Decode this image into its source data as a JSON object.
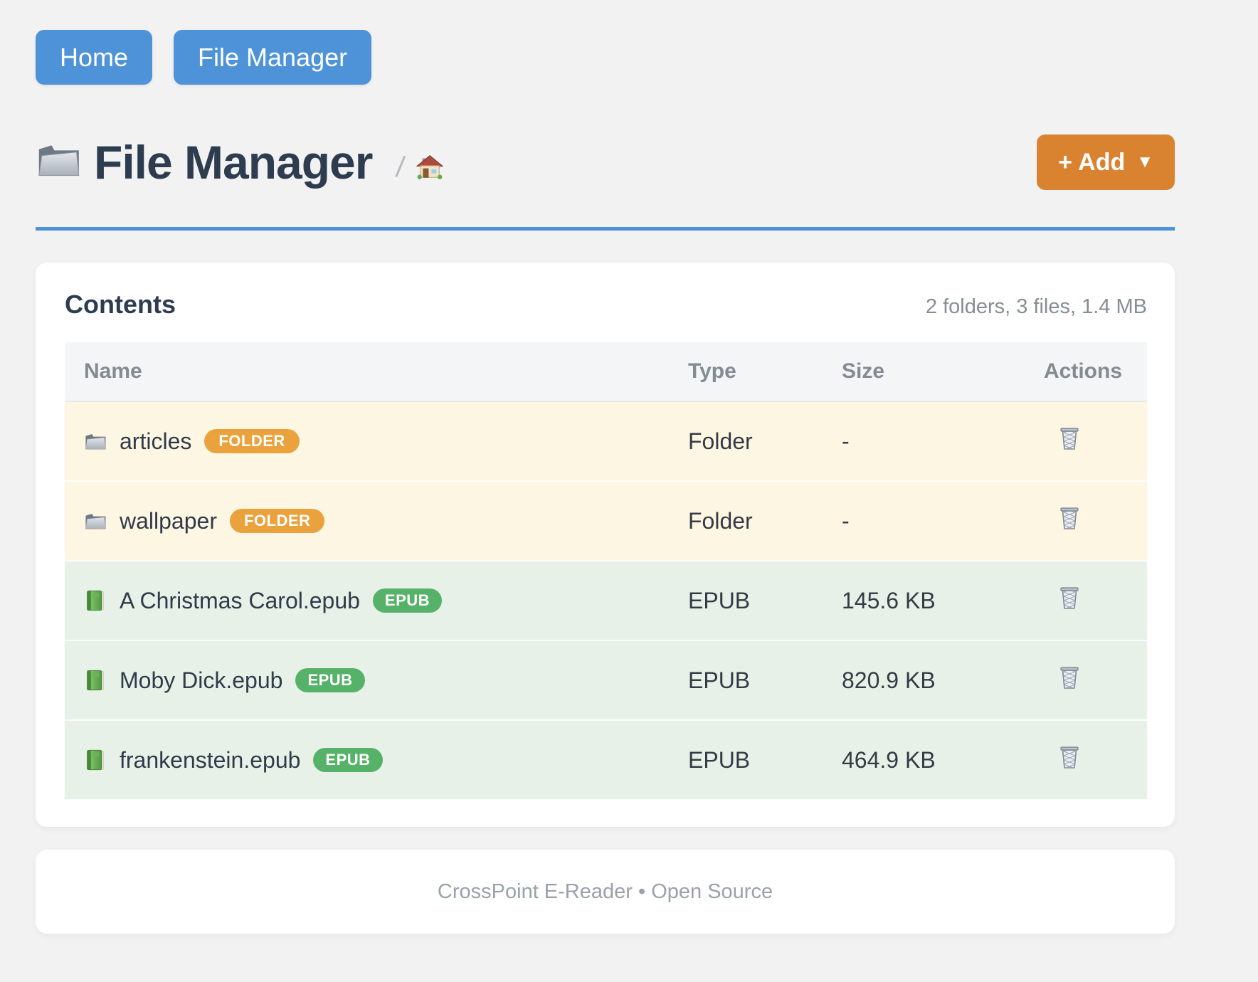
{
  "nav": {
    "home_label": "Home",
    "file_manager_label": "File Manager"
  },
  "header": {
    "title": "File Manager",
    "breadcrumb_separator": "/",
    "title_icon": "folder-icon",
    "breadcrumb_icon": "home-icon",
    "add_button_label": "+ Add",
    "add_button_caret": "▼"
  },
  "contents": {
    "heading": "Contents",
    "summary": "2 folders, 3 files, 1.4 MB"
  },
  "table": {
    "headers": {
      "name": "Name",
      "type": "Type",
      "size": "Size",
      "actions": "Actions"
    },
    "action_icon": "trash-icon",
    "rows": [
      {
        "name": "articles",
        "badge": "FOLDER",
        "type": "Folder",
        "size": "-",
        "kind": "folder",
        "icon": "folder-icon"
      },
      {
        "name": "wallpaper",
        "badge": "FOLDER",
        "type": "Folder",
        "size": "-",
        "kind": "folder",
        "icon": "folder-icon"
      },
      {
        "name": "A Christmas Carol.epub",
        "badge": "EPUB",
        "type": "EPUB",
        "size": "145.6 KB",
        "kind": "epub",
        "icon": "book-icon"
      },
      {
        "name": "Moby Dick.epub",
        "badge": "EPUB",
        "type": "EPUB",
        "size": "820.9 KB",
        "kind": "epub",
        "icon": "book-icon"
      },
      {
        "name": "frankenstein.epub",
        "badge": "EPUB",
        "type": "EPUB",
        "size": "464.9 KB",
        "kind": "epub",
        "icon": "book-icon"
      }
    ]
  },
  "footer": {
    "text": "CrossPoint E-Reader • Open Source"
  },
  "colors": {
    "accent_blue": "#4e93d8",
    "accent_orange": "#d9822f",
    "badge_orange": "#e9a23c",
    "badge_green": "#57b269",
    "row_folder_bg": "#fdf6e3",
    "row_epub_bg": "#e7f1e8",
    "title_text": "#2e3c50",
    "muted_text": "#858e95",
    "page_bg": "#f2f2f2"
  }
}
